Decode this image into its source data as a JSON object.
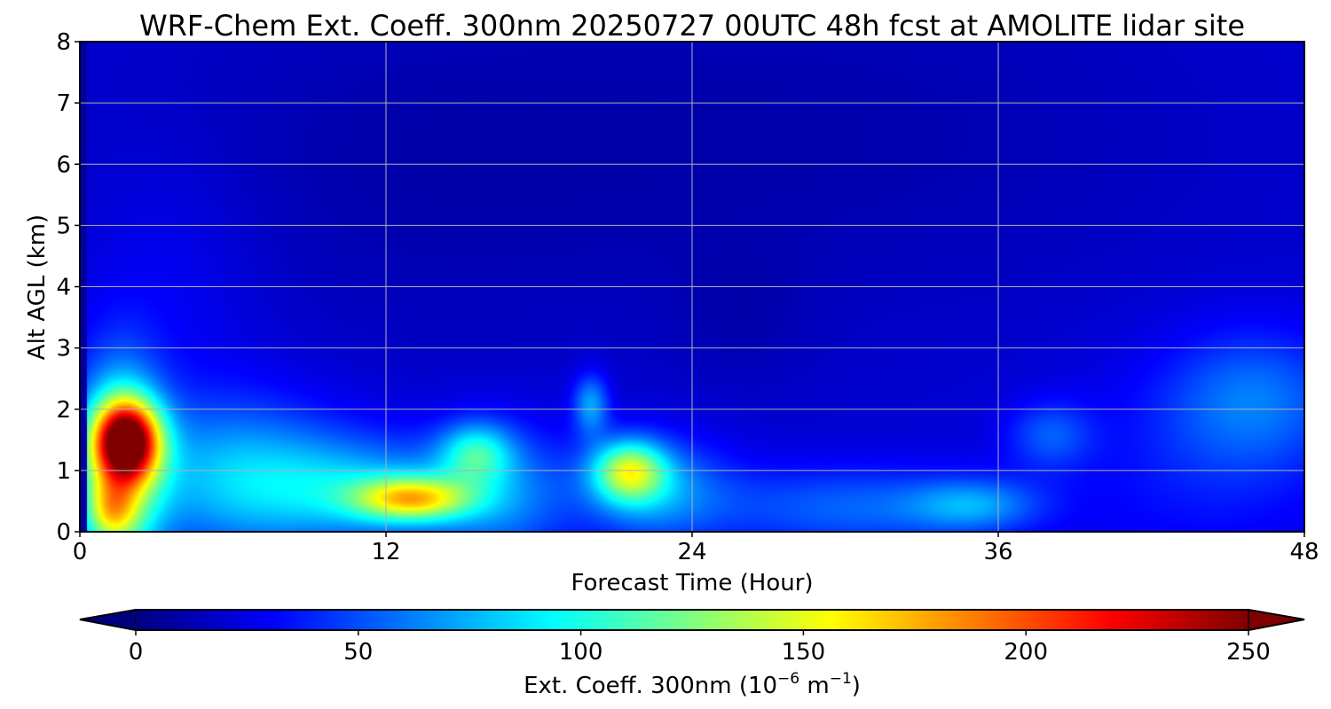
{
  "chart_data": {
    "type": "heatmap",
    "title": "WRF-Chem Ext. Coeff. 300nm  20250727 00UTC 48h fcst at AMOLITE lidar site",
    "xlabel": "Forecast Time (Hour)",
    "ylabel": "Alt AGL (km)",
    "xlim": [
      0,
      48
    ],
    "ylim": [
      0,
      8
    ],
    "xticks": [
      "0",
      "12",
      "24",
      "36",
      "48"
    ],
    "xtick_values": [
      0,
      12,
      24,
      36,
      48
    ],
    "yticks": [
      "0",
      "1",
      "2",
      "3",
      "4",
      "5",
      "6",
      "7",
      "8"
    ],
    "ytick_values": [
      0,
      1,
      2,
      3,
      4,
      5,
      6,
      7,
      8
    ],
    "grid": true,
    "colormap": "jet",
    "colorbar": {
      "label_main": "Ext. Coeff. 300nm  (10",
      "label_exp1": "−6",
      "label_mid": " m",
      "label_exp2": "−1",
      "label_end": ")",
      "range": [
        0,
        250
      ],
      "ticks": [
        "0",
        "50",
        "100",
        "150",
        "200",
        "250"
      ],
      "tick_values": [
        0,
        50,
        100,
        150,
        200,
        250
      ],
      "extend": "both",
      "orientation": "horizontal"
    },
    "background_value": 20,
    "features": [
      {
        "x": 1.8,
        "y": 1.5,
        "sx": 0.9,
        "sy": 0.45,
        "value": 185
      },
      {
        "x": 1.5,
        "y": 1.0,
        "sx": 1.2,
        "sy": 1.2,
        "value": 100
      },
      {
        "x": 1.2,
        "y": 0.35,
        "sx": 0.7,
        "sy": 0.35,
        "value": 60
      },
      {
        "x": 6.0,
        "y": 0.9,
        "sx": 3.0,
        "sy": 0.9,
        "value": 55
      },
      {
        "x": 13.0,
        "y": 0.55,
        "sx": 1.6,
        "sy": 0.25,
        "value": 110
      },
      {
        "x": 11.0,
        "y": 0.7,
        "sx": 3.0,
        "sy": 0.6,
        "value": 50
      },
      {
        "x": 15.5,
        "y": 1.3,
        "sx": 1.0,
        "sy": 0.35,
        "value": 60
      },
      {
        "x": 16.5,
        "y": 0.6,
        "sx": 2.0,
        "sy": 0.8,
        "value": 40
      },
      {
        "x": 20.0,
        "y": 2.1,
        "sx": 0.5,
        "sy": 0.35,
        "value": 50
      },
      {
        "x": 21.5,
        "y": 1.0,
        "sx": 1.0,
        "sy": 0.35,
        "value": 100
      },
      {
        "x": 22.5,
        "y": 0.7,
        "sx": 2.0,
        "sy": 0.6,
        "value": 45
      },
      {
        "x": 30.0,
        "y": 0.4,
        "sx": 4.0,
        "sy": 0.5,
        "value": 35
      },
      {
        "x": 35.0,
        "y": 0.45,
        "sx": 1.8,
        "sy": 0.3,
        "value": 40
      },
      {
        "x": 38.0,
        "y": 1.6,
        "sx": 1.2,
        "sy": 0.4,
        "value": 30
      },
      {
        "x": 46.0,
        "y": 2.2,
        "sx": 2.5,
        "sy": 0.8,
        "value": 35
      },
      {
        "x": 44.0,
        "y": 1.0,
        "sx": 4.0,
        "sy": 1.2,
        "value": 15
      },
      {
        "x": 3.5,
        "y": 4.0,
        "sx": 2.5,
        "sy": 1.5,
        "value": 10
      },
      {
        "x": 13.0,
        "y": 6.0,
        "sx": 8.0,
        "sy": 2.0,
        "value": -8
      },
      {
        "x": 30.0,
        "y": 6.5,
        "sx": 10.0,
        "sy": 2.0,
        "value": -8
      },
      {
        "x": 26.0,
        "y": 3.5,
        "sx": 2.0,
        "sy": 0.8,
        "value": -6
      }
    ]
  }
}
